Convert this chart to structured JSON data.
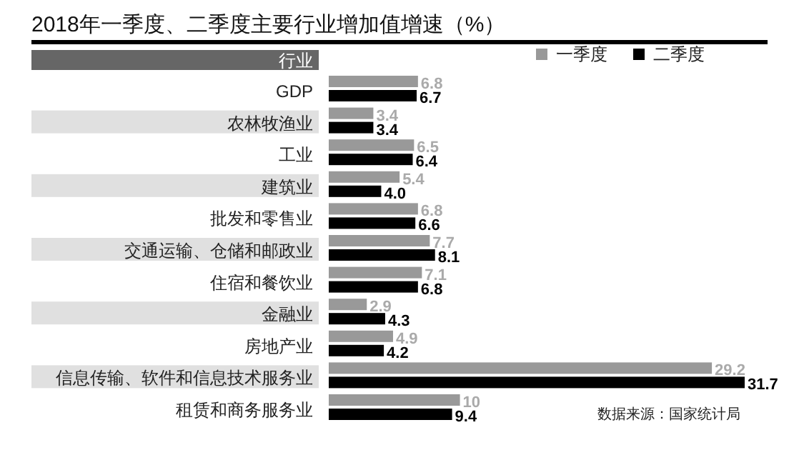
{
  "chart_data": {
    "type": "bar",
    "orientation": "horizontal",
    "title": "2018年一季度、二季度主要行业增加值增速（%）",
    "ylabel": "行业",
    "categories": [
      "GDP",
      "农林牧渔业",
      "工业",
      "建筑业",
      "批发和零售业",
      "交通运输、仓储和邮政业",
      "住宿和餐饮业",
      "金融业",
      "房地产业",
      "信息传输、软件和信息技术服务业",
      "租赁和商务服务业"
    ],
    "series": [
      {
        "name": "一季度",
        "color": "#999999",
        "values": [
          6.8,
          3.4,
          6.5,
          5.4,
          6.8,
          7.7,
          7.1,
          2.9,
          4.9,
          29.2,
          10
        ],
        "value_labels": [
          "6.8",
          "3.4",
          "6.5",
          "5.4",
          "6.8",
          "7.7",
          "7.1",
          "2.9",
          "4.9",
          "29.2",
          "10"
        ]
      },
      {
        "name": "二季度",
        "color": "#000000",
        "values": [
          6.7,
          3.4,
          6.4,
          4.0,
          6.6,
          8.1,
          6.8,
          4.3,
          4.2,
          31.7,
          9.4
        ],
        "value_labels": [
          "6.7",
          "3.4",
          "6.4",
          "4.0",
          "6.6",
          "8.1",
          "6.8",
          "4.3",
          "4.2",
          "31.7",
          "9.4"
        ]
      }
    ],
    "legend": "top right",
    "annotations": [
      "数据来源：国家统计局"
    ]
  }
}
